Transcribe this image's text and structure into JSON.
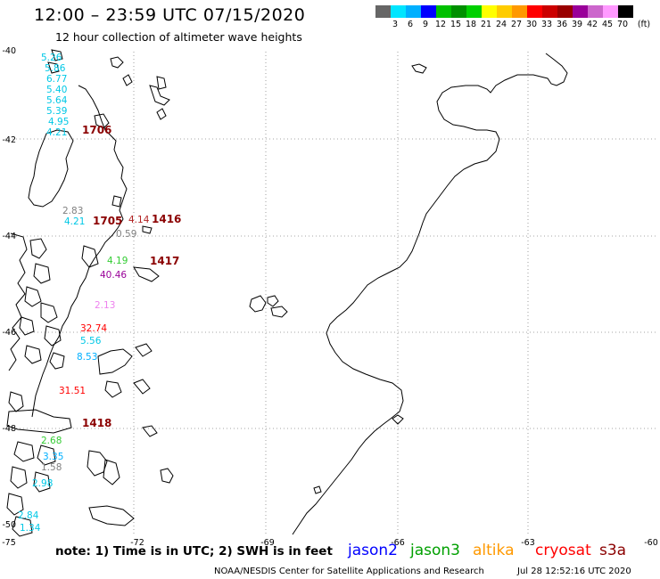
{
  "header": {
    "title": "12:00 – 23:59 UTC 07/15/2020",
    "subtitle": "12 hour collection of altimeter wave heights"
  },
  "colorbar": {
    "colors": [
      "#666666",
      "#00e5ff",
      "#00b0ff",
      "#0000ff",
      "#00c000",
      "#009000",
      "#00d000",
      "#ffff00",
      "#ffcc00",
      "#ff9900",
      "#ff0000",
      "#cc0000",
      "#990000",
      "#990099",
      "#cc66cc",
      "#ff99ff",
      "#000000"
    ],
    "labels": [
      "3",
      "6",
      "9",
      "12",
      "15",
      "18",
      "21",
      "24",
      "27",
      "30",
      "33",
      "36",
      "39",
      "42",
      "45",
      "70"
    ],
    "unit": "(ft)"
  },
  "axes": {
    "lat_labels": [
      "-40",
      "-42",
      "-44",
      "-46",
      "-48",
      "-50"
    ],
    "lon_labels": [
      "-75",
      "-72",
      "-69",
      "-66",
      "-63",
      "-60"
    ]
  },
  "wave_values": [
    {
      "text": "5.26",
      "color": "#00c8e6"
    },
    {
      "text": "5.86",
      "color": "#00c8e6"
    },
    {
      "text": "6.77",
      "color": "#00c8e6"
    },
    {
      "text": "5.40",
      "color": "#00c8e6"
    },
    {
      "text": "5.64",
      "color": "#00c8e6"
    },
    {
      "text": "5.39",
      "color": "#00c8e6"
    },
    {
      "text": "4.95",
      "color": "#00c8e6"
    },
    {
      "text": "4.21",
      "color": "#00c8e6"
    },
    {
      "text": "2.83",
      "color": "#808080"
    },
    {
      "text": "4.21",
      "color": "#00c8e6"
    },
    {
      "text": "4.14",
      "color": "#b22222"
    },
    {
      "text": "0.59",
      "color": "#808080"
    },
    {
      "text": "4.19",
      "color": "#33cc33"
    },
    {
      "text": "40.46",
      "color": "#990099"
    },
    {
      "text": "2.13",
      "color": "#ee82ee"
    },
    {
      "text": "32.74",
      "color": "#ff0000"
    },
    {
      "text": "5.56",
      "color": "#00c8e6"
    },
    {
      "text": "8.53",
      "color": "#00b0ff"
    },
    {
      "text": "31.51",
      "color": "#ff0000"
    },
    {
      "text": "2.68",
      "color": "#33cc33"
    },
    {
      "text": "3.35",
      "color": "#00b0ff"
    },
    {
      "text": "1.58",
      "color": "#808080"
    },
    {
      "text": "2.98",
      "color": "#00c8e6"
    },
    {
      "text": "2.84",
      "color": "#00c8e6"
    },
    {
      "text": "1.34",
      "color": "#00c8e6"
    }
  ],
  "time_labels": [
    {
      "text": "1706",
      "color": "#cc0000"
    },
    {
      "text": "1705",
      "color": "#cc0000"
    },
    {
      "text": "1416",
      "color": "#8b0000"
    },
    {
      "text": "1417",
      "color": "#8b0000"
    },
    {
      "text": "1418",
      "color": "#8b0000"
    }
  ],
  "footer": {
    "note": "note: 1) Time is in UTC; 2) SWH is in feet",
    "legend": [
      {
        "label": "jason2",
        "color": "#0000ff"
      },
      {
        "label": "jason3",
        "color": "#00a000"
      },
      {
        "label": "altika",
        "color": "#ff9900"
      },
      {
        "label": "cryosat",
        "color": "#ff0000"
      },
      {
        "label": "s3a",
        "color": "#8b0000"
      }
    ],
    "credit": "NOAA/NESDIS Center for Satellite Applications and Research",
    "timestamp": "Jul 28 12:52:16 UTC 2020"
  }
}
